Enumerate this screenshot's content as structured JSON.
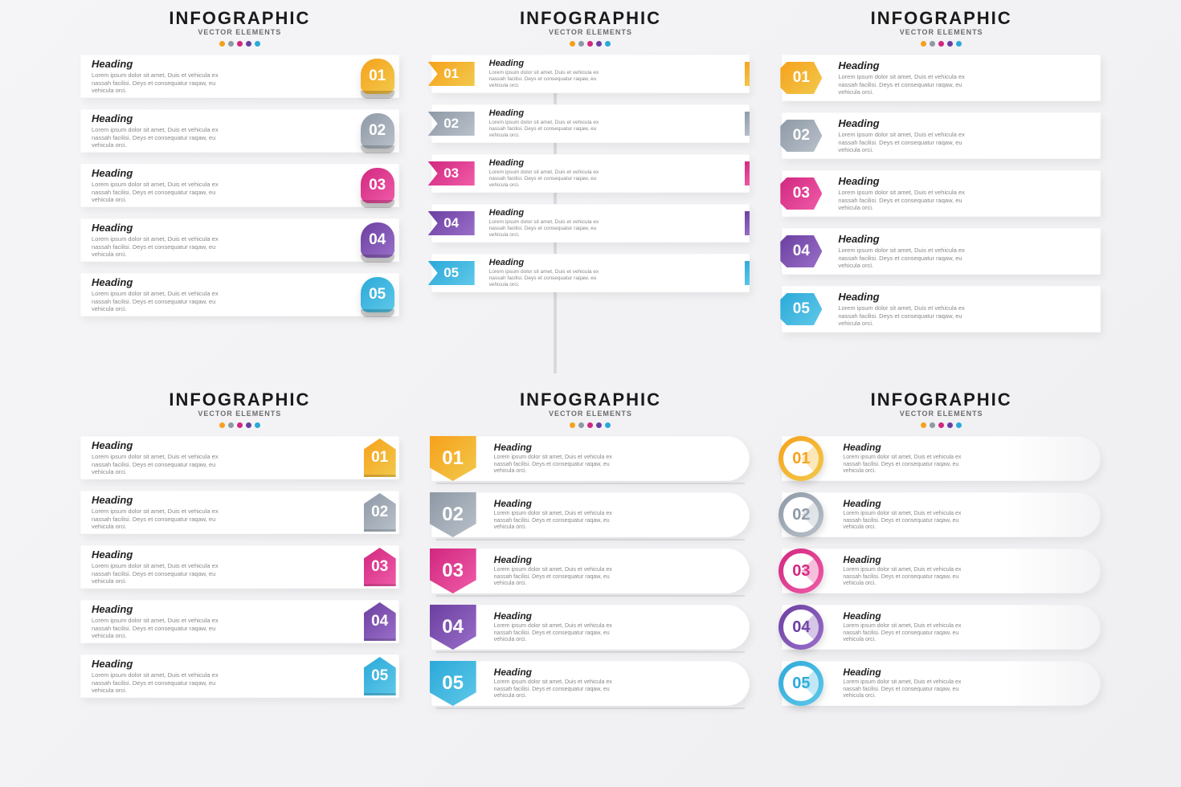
{
  "title": "INFOGRAPHIC",
  "subtitle": "VECTOR ELEMENTS",
  "lorem": "Lorem ipsum dolor sit amet, Duis et vehicula ex nassah facilisi. Deys et consequatur raqaw, eu vehicula orci.",
  "heading_label": "Heading",
  "colors": [
    {
      "num": "01",
      "c1": "#f6a11b",
      "c2": "#f2c94c",
      "txt": "#f6a11b"
    },
    {
      "num": "02",
      "c1": "#8e99a6",
      "c2": "#b9c1ca",
      "txt": "#8e99a6"
    },
    {
      "num": "03",
      "c1": "#d1277f",
      "c2": "#f05ca8",
      "txt": "#d1277f"
    },
    {
      "num": "04",
      "c1": "#6b3fa0",
      "c2": "#9a6fc9",
      "txt": "#6b3fa0"
    },
    {
      "num": "05",
      "c1": "#2ba9d9",
      "c2": "#5fc8e8",
      "txt": "#2ba9d9"
    }
  ],
  "dot_colors": [
    "#f6a11b",
    "#8e99a6",
    "#d1277f",
    "#6b3fa0",
    "#2ba9d9"
  ],
  "title_fontsize": 22,
  "subtitle_fontsize": 9,
  "heading_fontsize": 13,
  "body_fontsize": 7.5,
  "background": "#f3f3f6",
  "card_bg": "#ffffff",
  "text_color": "#222222",
  "muted_color": "#888888",
  "panels": 6,
  "items_per_panel": 5
}
